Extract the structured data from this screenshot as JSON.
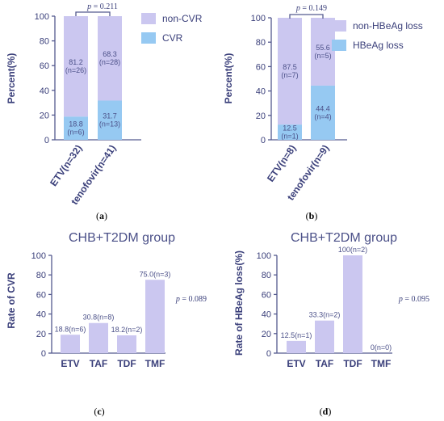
{
  "chart_data": [
    {
      "type": "bar",
      "stacked": true,
      "panel": "(a)",
      "categories": [
        "ETV(n=32)",
        "tenofovir(n=41)"
      ],
      "series": [
        {
          "name": "CVR",
          "values": [
            18.8,
            31.7
          ],
          "labels": [
            "18.8\n(n=6)",
            "31.7\n(n=13)"
          ],
          "color": "#96c9f2"
        },
        {
          "name": "non-CVR",
          "values": [
            81.2,
            68.3
          ],
          "labels": [
            "81.2\n(n=26)",
            "68.3\n(n=28)"
          ],
          "color": "#cbc7f0"
        }
      ],
      "ylabel": "Percent(%)",
      "ylim": [
        0,
        100
      ],
      "yticks": [
        "0",
        "20",
        "40",
        "60",
        "80",
        "100"
      ],
      "p_value": "p = 0.211",
      "legend": "top-right"
    },
    {
      "type": "bar",
      "stacked": true,
      "panel": "(b)",
      "categories": [
        "ETV(n=8)",
        "tenofovir(n=9)"
      ],
      "series": [
        {
          "name": "HBeAg loss",
          "values": [
            12.5,
            44.4
          ],
          "labels": [
            "12.5\n(n=1)",
            "44.4\n(n=4)"
          ],
          "color": "#96c9f2"
        },
        {
          "name": "non-HBeAg loss",
          "values": [
            87.5,
            55.6
          ],
          "labels": [
            "87.5\n(n=7)",
            "55.6\n(n=5)"
          ],
          "color": "#cbc7f0"
        }
      ],
      "ylabel": "Percent(%)",
      "ylim": [
        0,
        100
      ],
      "yticks": [
        "0",
        "20",
        "40",
        "60",
        "80",
        "100"
      ],
      "p_value": "p = 0.149",
      "legend": "top-right"
    },
    {
      "type": "bar",
      "panel": "(c)",
      "title": "CHB+T2DM group",
      "categories": [
        "ETV",
        "TAF",
        "TDF",
        "TMF"
      ],
      "values": [
        18.8,
        30.8,
        18.2,
        75.0
      ],
      "data_labels": [
        "18.8(n=6)",
        "30.8(n=8)",
        "18.2(n=2)",
        "75.0(n=3)"
      ],
      "color": "#cbc7f0",
      "ylabel": "Rate of CVR",
      "ylim": [
        0,
        100
      ],
      "yticks": [
        "0",
        "20",
        "40",
        "60",
        "80",
        "100"
      ],
      "p_value": "p = 0.089"
    },
    {
      "type": "bar",
      "panel": "(d)",
      "title": "CHB+T2DM group",
      "categories": [
        "ETV",
        "TAF",
        "TDF",
        "TMF"
      ],
      "values": [
        12.5,
        33.3,
        100,
        0
      ],
      "data_labels": [
        "12.5(n=1)",
        "33.3(n=2)",
        "100(n=2)",
        "0(n=0)"
      ],
      "color": "#cbc7f0",
      "ylabel": "Rate of HBeAg loss(%)",
      "ylim": [
        0,
        100
      ],
      "yticks": [
        "0",
        "20",
        "40",
        "60",
        "80",
        "100"
      ],
      "p_value": "p = 0.095"
    }
  ],
  "colors": {
    "axis": "#555a8f",
    "text": "#3a3f7a",
    "bar_light_purple": "#cbc7f0",
    "bar_light_blue": "#96c9f2"
  }
}
